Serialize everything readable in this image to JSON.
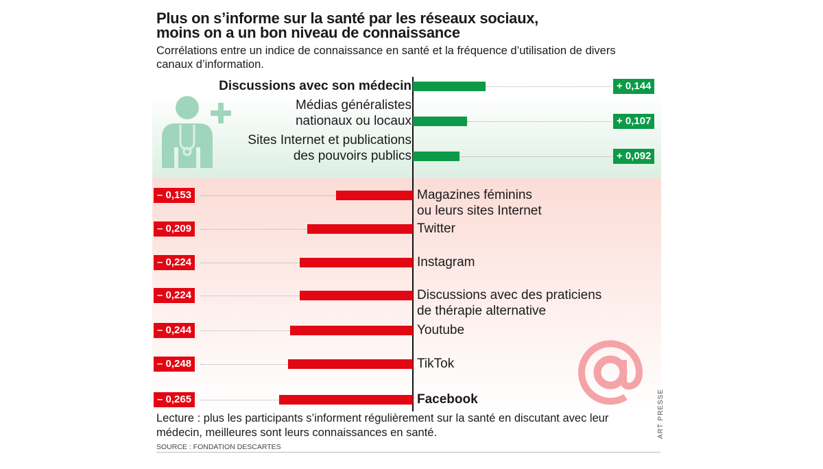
{
  "chart_data": {
    "type": "bar",
    "orientation": "horizontal",
    "title": "Plus on s’informe sur la santé par les réseaux sociaux, moins on a un bon niveau de connaissance",
    "subtitle": "Corrélations entre un indice de connaissance en santé et la fréquence d’utilisation de divers canaux d’information.",
    "categories": [
      "Discussions avec son médecin",
      "Médias généralistes nationaux ou locaux",
      "Sites Internet et publications des pouvoirs publics",
      "Magazines féminins ou leurs sites Internet",
      "Twitter",
      "Instagram",
      "Discussions avec des praticiens de thérapie alternative",
      "Youtube",
      "TikTok",
      "Facebook"
    ],
    "category_lines": [
      [
        "Discussions avec son médecin"
      ],
      [
        "Médias généralistes",
        "nationaux ou locaux"
      ],
      [
        "Sites Internet et publications",
        "des pouvoirs publics"
      ],
      [
        "Magazines féminins",
        "ou leurs sites Internet"
      ],
      [
        "Twitter"
      ],
      [
        "Instagram"
      ],
      [
        "Discussions avec des praticiens",
        "de thérapie alternative"
      ],
      [
        "Youtube"
      ],
      [
        "TikTok"
      ],
      [
        "Facebook"
      ]
    ],
    "values": [
      0.144,
      0.107,
      0.092,
      -0.153,
      -0.209,
      -0.224,
      -0.224,
      -0.244,
      -0.248,
      -0.265
    ],
    "data_labels": [
      "+ 0,144",
      "+ 0,107",
      "+ 0,092",
      "– 0,153",
      "– 0,209",
      "– 0,224",
      "– 0,224",
      "– 0,244",
      "– 0,248",
      "– 0,265"
    ],
    "bold_categories": [
      "Discussions avec son médecin",
      "Facebook"
    ],
    "colors": {
      "positive": "#0d9a48",
      "negative": "#e30613"
    },
    "icons": [
      "doctor-icon",
      "at-sign-icon"
    ]
  },
  "note": "Lecture : plus les participants s’informent régulièrement sur la santé en discutant avec leur médecin, meilleures sont leurs connaissances en santé.",
  "source": "SOURCE : FONDATION DESCARTES",
  "credit": "ART PRESSE"
}
